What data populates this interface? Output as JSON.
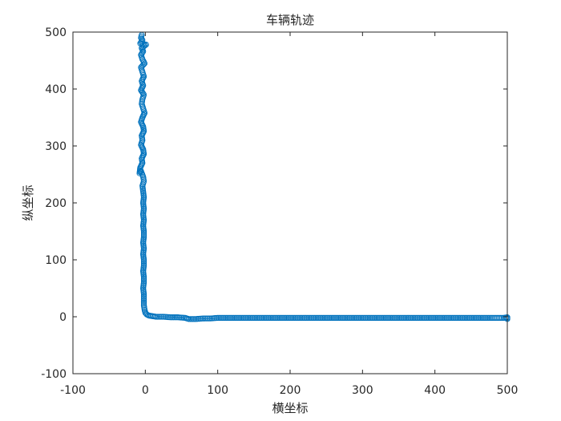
{
  "chart_data": {
    "type": "scatter",
    "title": "车辆轨迹",
    "xlabel": "横坐标",
    "ylabel": "纵坐标",
    "xlim": [
      -100,
      500
    ],
    "ylim": [
      -100,
      500
    ],
    "xticks": [
      "-100",
      "0",
      "100",
      "200",
      "300",
      "400",
      "500"
    ],
    "yticks": [
      "-100",
      "0",
      "100",
      "200",
      "300",
      "400",
      "500"
    ],
    "grid": false,
    "legend": "none",
    "marker": "circle",
    "color": "#0072BD",
    "series": [
      {
        "points": [
          [
            -5,
            495
          ],
          [
            -6,
            490
          ],
          [
            -4,
            486
          ],
          [
            -7,
            480
          ],
          [
            1,
            478
          ],
          [
            -5,
            472
          ],
          [
            -3,
            466
          ],
          [
            -6,
            460
          ],
          [
            -4,
            452
          ],
          [
            -1,
            445
          ],
          [
            -6,
            438
          ],
          [
            -4,
            430
          ],
          [
            -2,
            422
          ],
          [
            -5,
            414
          ],
          [
            -3,
            406
          ],
          [
            -6,
            398
          ],
          [
            -2,
            390
          ],
          [
            -4,
            382
          ],
          [
            -5,
            374
          ],
          [
            -3,
            366
          ],
          [
            -1,
            358
          ],
          [
            -4,
            350
          ],
          [
            -6,
            342
          ],
          [
            -3,
            334
          ],
          [
            -2,
            326
          ],
          [
            -5,
            318
          ],
          [
            -4,
            310
          ],
          [
            -6,
            302
          ],
          [
            -3,
            294
          ],
          [
            -2,
            286
          ],
          [
            -5,
            278
          ],
          [
            -4,
            270
          ],
          [
            -7,
            262
          ],
          [
            -8,
            252
          ],
          [
            -6,
            256
          ],
          [
            -3,
            246
          ],
          [
            -2,
            238
          ],
          [
            -4,
            230
          ],
          [
            -3,
            220
          ],
          [
            -2,
            210
          ],
          [
            -3,
            200
          ],
          [
            -2,
            190
          ],
          [
            -3,
            180
          ],
          [
            -2,
            170
          ],
          [
            -3,
            160
          ],
          [
            -2,
            150
          ],
          [
            -2,
            140
          ],
          [
            -3,
            130
          ],
          [
            -2,
            120
          ],
          [
            -3,
            110
          ],
          [
            -2,
            100
          ],
          [
            -2,
            90
          ],
          [
            -3,
            80
          ],
          [
            -2,
            70
          ],
          [
            -2,
            60
          ],
          [
            -3,
            50
          ],
          [
            -2,
            40
          ],
          [
            -2,
            30
          ],
          [
            -2,
            20
          ],
          [
            -1,
            12
          ],
          [
            0,
            7
          ],
          [
            2,
            4
          ],
          [
            5,
            2
          ],
          [
            10,
            1
          ],
          [
            15,
            0
          ],
          [
            25,
            0
          ],
          [
            35,
            -1
          ],
          [
            45,
            -1
          ],
          [
            55,
            -2
          ],
          [
            60,
            -4
          ],
          [
            70,
            -4
          ],
          [
            80,
            -3
          ],
          [
            90,
            -3
          ],
          [
            100,
            -2
          ],
          [
            120,
            -2
          ],
          [
            140,
            -2
          ],
          [
            160,
            -2
          ],
          [
            180,
            -2
          ],
          [
            200,
            -2
          ],
          [
            220,
            -2
          ],
          [
            240,
            -2
          ],
          [
            260,
            -2
          ],
          [
            280,
            -2
          ],
          [
            300,
            -2
          ],
          [
            320,
            -2
          ],
          [
            340,
            -2
          ],
          [
            360,
            -2
          ],
          [
            380,
            -2
          ],
          [
            400,
            -2
          ],
          [
            420,
            -2
          ],
          [
            440,
            -2
          ],
          [
            460,
            -2
          ],
          [
            480,
            -2
          ],
          [
            495,
            -2
          ],
          [
            500,
            -1
          ],
          [
            500,
            -4
          ]
        ]
      }
    ]
  }
}
